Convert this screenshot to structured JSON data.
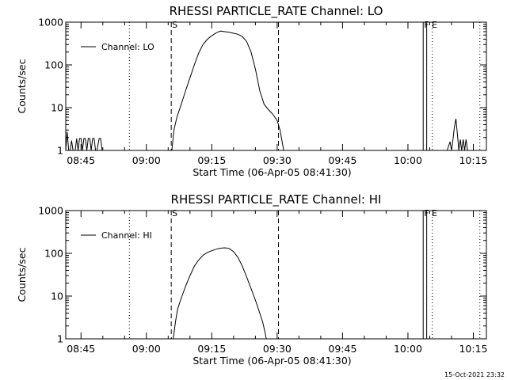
{
  "footer": {
    "timestamp": "15-Oct-2021 23:32"
  },
  "chart_data": [
    {
      "type": "line",
      "title": "RHESSI PARTICLE_RATE Channel: LO",
      "xlabel": "Start Time (06-Apr-05 08:41:30)",
      "ylabel": "Counts/sec",
      "yscale": "log",
      "ylim": [
        1,
        1000
      ],
      "xlim_minutes_after_08:40": [
        1.5,
        98
      ],
      "xticks": [
        "08:45",
        "09:00",
        "09:15",
        "09:30",
        "09:45",
        "10:00",
        "10:15"
      ],
      "yticks": [
        "1",
        "10",
        "100",
        "1000"
      ],
      "grid": false,
      "legend": {
        "position": "top-left",
        "entries": [
          "Channel: LO"
        ]
      },
      "annotations": {
        "start_marker": "S",
        "end_marker": "F E"
      },
      "series": [
        {
          "name": "Channel: LO",
          "points": [
            [
              "08:41:30",
              1.0
            ],
            [
              "08:41:50",
              2.7
            ],
            [
              "08:42:10",
              1.0
            ],
            [
              "08:42:30",
              1.0
            ],
            [
              "08:42:50",
              1.7
            ],
            [
              "08:43:10",
              1.0
            ],
            [
              "08:43:40",
              1.0
            ],
            [
              "08:44:00",
              1.9
            ],
            [
              "08:44:20",
              1.0
            ],
            [
              "08:44:40",
              1.9
            ],
            [
              "08:45:00",
              1.9
            ],
            [
              "08:45:20",
              1.0
            ],
            [
              "08:45:40",
              1.9
            ],
            [
              "08:46:00",
              1.9
            ],
            [
              "08:46:20",
              1.0
            ],
            [
              "08:46:40",
              1.9
            ],
            [
              "08:47:00",
              1.9
            ],
            [
              "08:47:20",
              1.0
            ],
            [
              "08:47:40",
              1.9
            ],
            [
              "08:48:00",
              1.9
            ],
            [
              "08:48:20",
              1.0
            ],
            [
              "08:48:40",
              1.0
            ],
            [
              "08:49:10",
              1.9
            ],
            [
              "08:49:30",
              1.9
            ],
            [
              "08:49:50",
              1.0
            ],
            [
              "09:05:50",
              1.0
            ],
            [
              "09:06:20",
              3.0
            ],
            [
              "09:07:00",
              6.0
            ],
            [
              "09:08:00",
              12
            ],
            [
              "09:09:00",
              25
            ],
            [
              "09:10:00",
              50
            ],
            [
              "09:11:00",
              100
            ],
            [
              "09:12:00",
              190
            ],
            [
              "09:13:00",
              300
            ],
            [
              "09:14:00",
              400
            ],
            [
              "09:15:00",
              480
            ],
            [
              "09:16:00",
              560
            ],
            [
              "09:17:00",
              620
            ],
            [
              "09:18:00",
              600
            ],
            [
              "09:19:00",
              580
            ],
            [
              "09:20:00",
              550
            ],
            [
              "09:21:00",
              520
            ],
            [
              "09:22:00",
              460
            ],
            [
              "09:23:00",
              350
            ],
            [
              "09:24:00",
              200
            ],
            [
              "09:25:00",
              80
            ],
            [
              "09:26:00",
              25
            ],
            [
              "09:27:00",
              12
            ],
            [
              "09:28:00",
              9
            ],
            [
              "09:29:00",
              7
            ],
            [
              "09:30:00",
              5
            ],
            [
              "09:30:40",
              3
            ],
            [
              "09:31:30",
              1.0
            ],
            [
              "10:09:00",
              1.0
            ],
            [
              "10:09:40",
              1.6
            ],
            [
              "10:10:00",
              1.0
            ],
            [
              "10:10:20",
              1.8
            ],
            [
              "10:10:40",
              3.5
            ],
            [
              "10:11:00",
              5.5
            ],
            [
              "10:11:20",
              2.5
            ],
            [
              "10:11:40",
              1.0
            ],
            [
              "10:12:00",
              1.8
            ],
            [
              "10:12:20",
              1.0
            ],
            [
              "10:12:40",
              1.8
            ],
            [
              "10:13:00",
              1.0
            ],
            [
              "10:13:20",
              1.8
            ],
            [
              "10:13:40",
              1.0
            ]
          ]
        }
      ]
    },
    {
      "type": "line",
      "title": "RHESSI PARTICLE_RATE Channel: HI",
      "xlabel": "Start Time (06-Apr-05 08:41:30)",
      "ylabel": "Counts/sec",
      "yscale": "log",
      "ylim": [
        1,
        1000
      ],
      "xlim_minutes_after_08:40": [
        1.5,
        98
      ],
      "xticks": [
        "08:45",
        "09:00",
        "09:15",
        "09:30",
        "09:45",
        "10:00",
        "10:15"
      ],
      "yticks": [
        "1",
        "10",
        "100",
        "1000"
      ],
      "grid": false,
      "legend": {
        "position": "top-left",
        "entries": [
          "Channel: HI"
        ]
      },
      "annotations": {
        "start_marker": "S",
        "end_marker": "F E"
      },
      "series": [
        {
          "name": "Channel: HI",
          "points": [
            [
              "09:06:10",
              1.0
            ],
            [
              "09:06:40",
              2.5
            ],
            [
              "09:07:10",
              5.0
            ],
            [
              "09:08:00",
              9.0
            ],
            [
              "09:09:00",
              17
            ],
            [
              "09:10:00",
              30
            ],
            [
              "09:11:00",
              50
            ],
            [
              "09:12:00",
              70
            ],
            [
              "09:13:00",
              90
            ],
            [
              "09:14:00",
              105
            ],
            [
              "09:15:00",
              115
            ],
            [
              "09:16:00",
              125
            ],
            [
              "09:17:00",
              132
            ],
            [
              "09:18:00",
              135
            ],
            [
              "09:19:00",
              130
            ],
            [
              "09:20:00",
              110
            ],
            [
              "09:21:00",
              80
            ],
            [
              "09:22:00",
              50
            ],
            [
              "09:23:00",
              28
            ],
            [
              "09:24:00",
              15
            ],
            [
              "09:25:00",
              8
            ],
            [
              "09:26:00",
              4
            ],
            [
              "09:26:40",
              2.5
            ],
            [
              "09:27:10",
              1.5
            ],
            [
              "09:27:30",
              1.0
            ]
          ]
        }
      ]
    }
  ]
}
